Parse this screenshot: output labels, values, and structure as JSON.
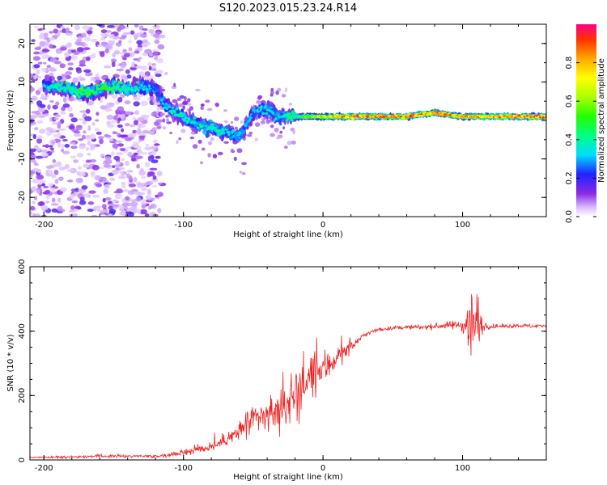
{
  "chart_data": [
    {
      "type": "heatmap",
      "title": "S120.2023.015.23.24.R14",
      "xlabel": "Height of straight line (km)",
      "ylabel": "Frequency (Hz)",
      "xlim": [
        -210,
        160
      ],
      "ylim": [
        -25,
        25
      ],
      "x_ticks": [
        -200,
        -100,
        0,
        100
      ],
      "y_ticks": [
        -20,
        -10,
        0,
        10,
        20
      ],
      "colorbar": {
        "label": "Normalized spectral amplitude",
        "range": [
          0.0,
          1.0
        ],
        "ticks": [
          0.0,
          0.2,
          0.4,
          0.6,
          0.8
        ]
      },
      "ridge": {
        "note": "dominant frequency ridge vs height",
        "x": [
          -200,
          -190,
          -180,
          -170,
          -160,
          -150,
          -140,
          -130,
          -120,
          -110,
          -100,
          -90,
          -80,
          -70,
          -60,
          -50,
          -40,
          -30,
          -20,
          -10,
          0,
          20,
          40,
          60,
          80,
          100,
          120,
          140,
          160
        ],
        "frequency": [
          9,
          9,
          8,
          7,
          8,
          9,
          8,
          9,
          8,
          3,
          1,
          -1,
          -2,
          -3,
          -4,
          2,
          3,
          1,
          1,
          1,
          1,
          1,
          1,
          1,
          2,
          1,
          1,
          1,
          1
        ],
        "amplitude": [
          0.35,
          0.4,
          0.45,
          0.5,
          0.45,
          0.5,
          0.4,
          0.35,
          0.3,
          0.35,
          0.4,
          0.35,
          0.4,
          0.35,
          0.35,
          0.3,
          0.35,
          0.35,
          0.45,
          0.6,
          0.7,
          0.9,
          0.85,
          0.85,
          0.9,
          0.8,
          0.85,
          0.9,
          0.9
        ]
      }
    },
    {
      "type": "line",
      "xlabel": "Height of straight line (km)",
      "ylabel": "SNR (10 * v/v)",
      "xlim": [
        -210,
        160
      ],
      "ylim": [
        0,
        600
      ],
      "x_ticks": [
        -200,
        -100,
        0,
        100
      ],
      "y_ticks": [
        0,
        200,
        400,
        600
      ],
      "series": [
        {
          "name": "SNR",
          "color": "#ee2222",
          "x": [
            -210,
            -200,
            -180,
            -160,
            -140,
            -120,
            -110,
            -100,
            -90,
            -80,
            -70,
            -60,
            -50,
            -40,
            -30,
            -20,
            -10,
            0,
            10,
            20,
            30,
            40,
            50,
            60,
            70,
            80,
            90,
            100,
            105,
            110,
            115,
            120,
            130,
            140,
            150,
            160
          ],
          "values": [
            8,
            8,
            10,
            12,
            12,
            12,
            15,
            25,
            32,
            40,
            60,
            90,
            120,
            140,
            160,
            200,
            250,
            280,
            320,
            350,
            390,
            405,
            410,
            412,
            412,
            415,
            418,
            420,
            420,
            420,
            418,
            415,
            415,
            418,
            415,
            418
          ],
          "noise": [
            3,
            3,
            6,
            6,
            6,
            6,
            8,
            15,
            18,
            20,
            25,
            40,
            60,
            70,
            90,
            110,
            100,
            80,
            50,
            20,
            10,
            8,
            8,
            8,
            10,
            12,
            15,
            25,
            150,
            160,
            20,
            10,
            8,
            8,
            8,
            8
          ]
        }
      ]
    }
  ]
}
